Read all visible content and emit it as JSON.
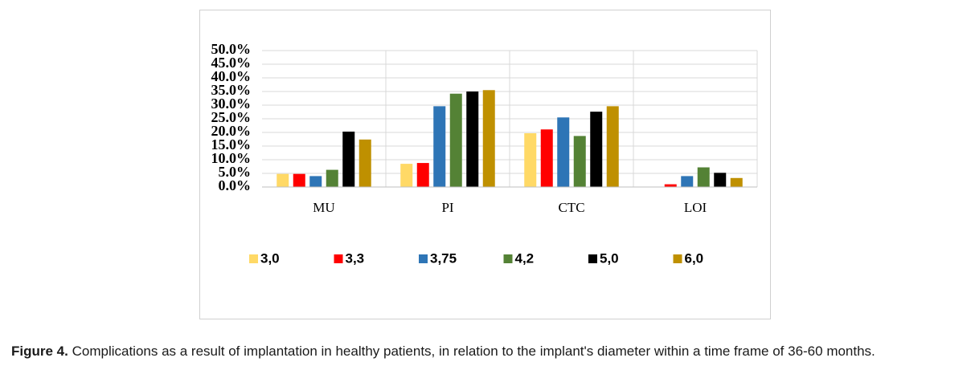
{
  "chart_data": {
    "type": "bar",
    "categories": [
      "MU",
      "PI",
      "CTC",
      "LOI"
    ],
    "series": [
      {
        "name": "3,0",
        "color": "#ffd966",
        "values": [
          4.8,
          8.5,
          19.7,
          0
        ]
      },
      {
        "name": "3,3",
        "color": "#ff0000",
        "values": [
          4.8,
          8.8,
          21.1,
          1.0
        ]
      },
      {
        "name": "3,75",
        "color": "#2e75b6",
        "values": [
          4.0,
          29.6,
          25.5,
          4.0
        ]
      },
      {
        "name": "4,2",
        "color": "#548235",
        "values": [
          6.3,
          34.2,
          18.7,
          7.2
        ]
      },
      {
        "name": "5,0",
        "color": "#000000",
        "values": [
          20.3,
          35.0,
          27.6,
          5.2
        ]
      },
      {
        "name": "6,0",
        "color": "#bf9000",
        "values": [
          17.4,
          35.5,
          29.6,
          3.3
        ]
      }
    ],
    "ylim": [
      0,
      50
    ],
    "yticks": [
      {
        "value": 0,
        "label": "0.0%"
      },
      {
        "value": 5,
        "label": "5.0%"
      },
      {
        "value": 10,
        "label": "10.0%"
      },
      {
        "value": 15,
        "label": "15.0%"
      },
      {
        "value": 20,
        "label": "20.0%"
      },
      {
        "value": 25,
        "label": "25.0%"
      },
      {
        "value": 30,
        "label": "30.0%"
      },
      {
        "value": 35,
        "label": "35.0%"
      },
      {
        "value": 40,
        "label": "40.0%"
      },
      {
        "value": 45,
        "label": "45.0%"
      },
      {
        "value": 50,
        "label": "50.0%"
      }
    ],
    "grid": true,
    "legend": "bottom"
  },
  "caption": {
    "label": "Figure 4.",
    "text": "Complications as a result of implantation in healthy patients, in relation to the implant's diameter within a time frame of 36-60 months."
  }
}
